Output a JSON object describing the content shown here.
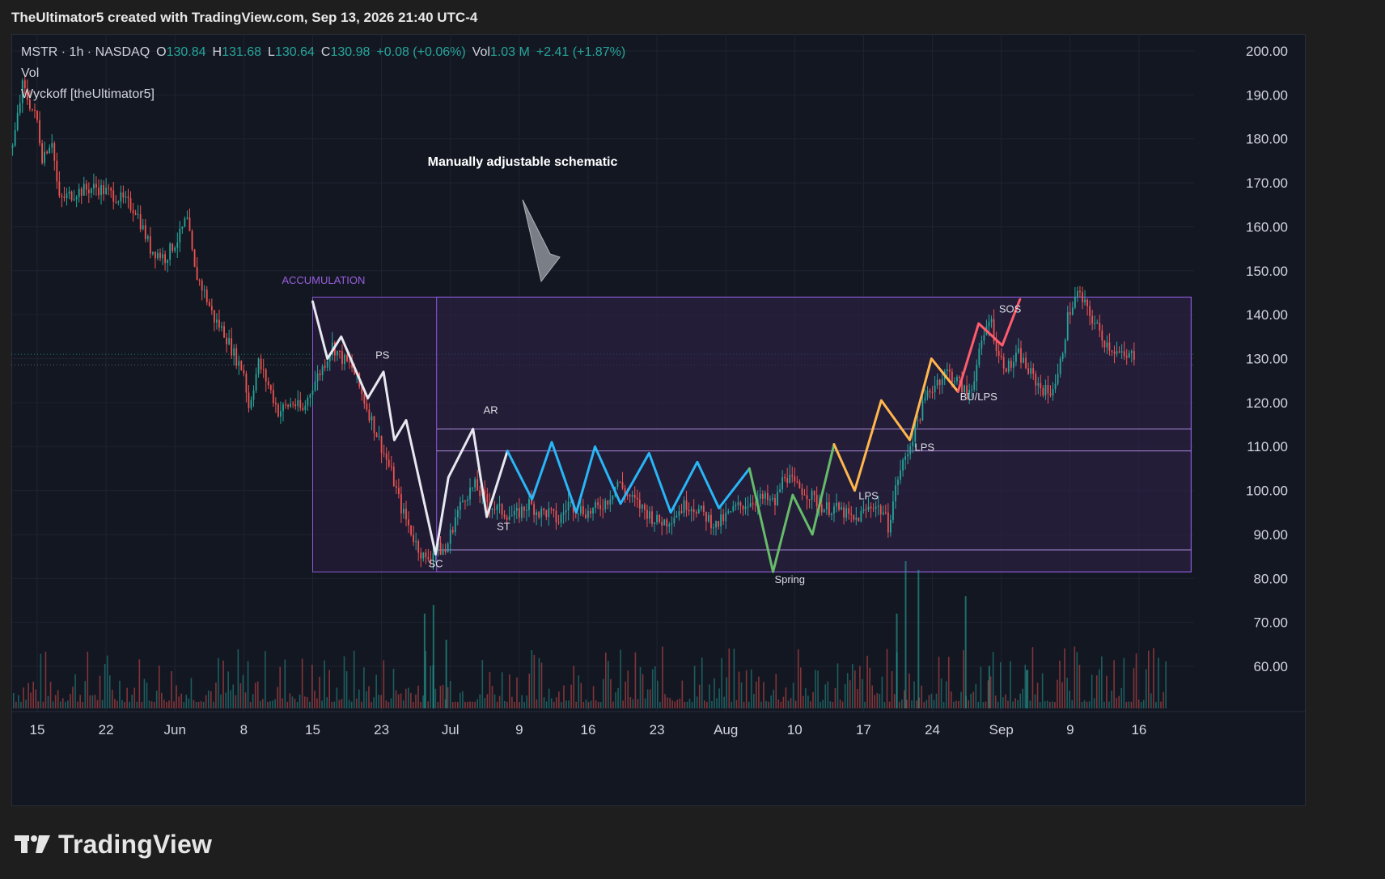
{
  "header": {
    "credit": "TheUltimator5 created with TradingView.com, Sep 13, 2026 21:40 UTC-4"
  },
  "legend": {
    "symbol": "MSTR · 1h · NASDAQ",
    "o_label": "O",
    "o_value": "130.84",
    "h_label": "H",
    "h_value": "131.68",
    "l_label": "L",
    "l_value": "130.64",
    "c_label": "C",
    "c_value": "130.98",
    "change": "+0.08 (+0.06%)",
    "vol_label": "Vol",
    "vol_value": "1.03 M",
    "vol_change": "+2.41 (+1.87%)",
    "line2": "Vol",
    "line3": "Wyckoff [theUltimator5]"
  },
  "footer": {
    "brand": "TradingView"
  },
  "colors": {
    "up": "#26a69a",
    "down": "#ef5350",
    "background": "#131722",
    "box_fill": "#2a1e3e",
    "box_stroke": "#8c5ad8",
    "white_leg": "#e8e8f0",
    "cyan_leg": "#29b6f6",
    "green_leg": "#66bb6a",
    "orange_leg": "#ffb74d",
    "red_leg": "#ff5c6c"
  },
  "chart_data": {
    "type": "candlestick",
    "title": "",
    "ylim": [
      50,
      205
    ],
    "y_ticks": [
      200,
      190,
      180,
      170,
      160,
      150,
      140,
      130,
      120,
      110,
      100,
      90,
      80,
      70,
      60
    ],
    "y_tick_labels": [
      "200.00",
      "190.00",
      "180.00",
      "170.00",
      "160.00",
      "150.00",
      "140.00",
      "130.00",
      "120.00",
      "110.00",
      "100.00",
      "90.00",
      "80.00",
      "70.00",
      "60.00"
    ],
    "x_ticks": [
      {
        "day": 0,
        "label": "15"
      },
      {
        "day": 7,
        "label": "22"
      },
      {
        "day": 14,
        "label": "Jun"
      },
      {
        "day": 21,
        "label": "8"
      },
      {
        "day": 28,
        "label": "15"
      },
      {
        "day": 35,
        "label": "23"
      },
      {
        "day": 42,
        "label": "Jul"
      },
      {
        "day": 49,
        "label": "9"
      },
      {
        "day": 56,
        "label": "16"
      },
      {
        "day": 63,
        "label": "23"
      },
      {
        "day": 70,
        "label": "Aug"
      },
      {
        "day": 77,
        "label": "10"
      },
      {
        "day": 84,
        "label": "17"
      },
      {
        "day": 91,
        "label": "24"
      },
      {
        "day": 98,
        "label": "Sep"
      },
      {
        "day": 105,
        "label": "9"
      },
      {
        "day": 112,
        "label": "16"
      }
    ],
    "price_path": [
      [
        -2.5,
        178
      ],
      [
        -1.5,
        192
      ],
      [
        0,
        184
      ],
      [
        0.5,
        176
      ],
      [
        1.5,
        180
      ],
      [
        2.2,
        166
      ],
      [
        4,
        168
      ],
      [
        6,
        169
      ],
      [
        8,
        167
      ],
      [
        10,
        164
      ],
      [
        11.5,
        155
      ],
      [
        13,
        153
      ],
      [
        14.5,
        158
      ],
      [
        15.2,
        162
      ],
      [
        16,
        150
      ],
      [
        17,
        145
      ],
      [
        18,
        139
      ],
      [
        19,
        136
      ],
      [
        20,
        131
      ],
      [
        21,
        127
      ],
      [
        21.5,
        119
      ],
      [
        22.5,
        129
      ],
      [
        23.5,
        124
      ],
      [
        24.5,
        118
      ],
      [
        26,
        120
      ],
      [
        27,
        118
      ],
      [
        28,
        124
      ],
      [
        29,
        128
      ],
      [
        30,
        133
      ],
      [
        31,
        130
      ],
      [
        32,
        128
      ],
      [
        33,
        122
      ],
      [
        34,
        116
      ],
      [
        35,
        110
      ],
      [
        36,
        104
      ],
      [
        37,
        96
      ],
      [
        38.5,
        88
      ],
      [
        39.5,
        84
      ],
      [
        40.5,
        87
      ],
      [
        41.5,
        86
      ],
      [
        42.5,
        94
      ],
      [
        43.5,
        99
      ],
      [
        44.5,
        101
      ],
      [
        45.5,
        98
      ],
      [
        46.5,
        96
      ],
      [
        47.5,
        95
      ],
      [
        48.5,
        94
      ],
      [
        50,
        97
      ],
      [
        51,
        95
      ],
      [
        52,
        95
      ],
      [
        53,
        93
      ],
      [
        54,
        97
      ],
      [
        55,
        96
      ],
      [
        56,
        95
      ],
      [
        57,
        96
      ],
      [
        58,
        98
      ],
      [
        59,
        102
      ],
      [
        60,
        99
      ],
      [
        61,
        97
      ],
      [
        62,
        95
      ],
      [
        63,
        93
      ],
      [
        64,
        93
      ],
      [
        65,
        95
      ],
      [
        66,
        97
      ],
      [
        67,
        96
      ],
      [
        68,
        94
      ],
      [
        69,
        92
      ],
      [
        70,
        94
      ],
      [
        71,
        96
      ],
      [
        72,
        97
      ],
      [
        73,
        98
      ],
      [
        74,
        98
      ],
      [
        75,
        97
      ],
      [
        76,
        104
      ],
      [
        77,
        101
      ],
      [
        78,
        100
      ],
      [
        79,
        98
      ],
      [
        80,
        96
      ],
      [
        81,
        96
      ],
      [
        82,
        95
      ],
      [
        83,
        93
      ],
      [
        84,
        95
      ],
      [
        85,
        97
      ],
      [
        86,
        95
      ],
      [
        86.5,
        92
      ],
      [
        87.5,
        103
      ],
      [
        88.5,
        109
      ],
      [
        89.5,
        116
      ],
      [
        90.5,
        122
      ],
      [
        91.5,
        125
      ],
      [
        92.5,
        127
      ],
      [
        93.5,
        125
      ],
      [
        94.5,
        122
      ],
      [
        95,
        124
      ],
      [
        96,
        133
      ],
      [
        96.8,
        140
      ],
      [
        97.8,
        130
      ],
      [
        98.8,
        128
      ],
      [
        99.8,
        131
      ],
      [
        100.8,
        127
      ],
      [
        101.8,
        124
      ],
      [
        102.8,
        122
      ],
      [
        103.8,
        126
      ],
      [
        104.8,
        140
      ],
      [
        105.8,
        145
      ],
      [
        106.5,
        142
      ],
      [
        107.5,
        138
      ],
      [
        108.5,
        134
      ],
      [
        109.5,
        132
      ],
      [
        110.5,
        130
      ],
      [
        111.5,
        131
      ]
    ],
    "box": {
      "x_start": 28.0,
      "x_end": 117.3,
      "y_top": 144,
      "y_bottom": 81.5,
      "inner_x_start": 40.6
    },
    "levels": [
      114,
      109,
      86.5
    ],
    "swing_white": [
      [
        28.0,
        143
      ],
      [
        29.5,
        130
      ],
      [
        30.9,
        135
      ],
      [
        33.6,
        121
      ],
      [
        35.2,
        127
      ],
      [
        36.3,
        111.5
      ],
      [
        37.5,
        116
      ],
      [
        40.5,
        85.5
      ],
      [
        41.8,
        103
      ],
      [
        44.3,
        114
      ],
      [
        45.7,
        94
      ],
      [
        47.8,
        109
      ]
    ],
    "swing_cyan": [
      [
        47.8,
        109
      ],
      [
        50.3,
        98
      ],
      [
        52.3,
        111
      ],
      [
        54.8,
        95
      ],
      [
        56.7,
        110
      ],
      [
        59.3,
        97
      ],
      [
        62.2,
        108.5
      ],
      [
        64.4,
        95
      ],
      [
        67.1,
        106.5
      ],
      [
        69.3,
        96
      ],
      [
        72.4,
        105
      ]
    ],
    "swing_green": [
      [
        72.4,
        105
      ],
      [
        74.8,
        81.5
      ],
      [
        76.8,
        99
      ],
      [
        78.8,
        90
      ],
      [
        81.0,
        110.5
      ]
    ],
    "swing_orange": [
      [
        81.0,
        110.5
      ],
      [
        83.1,
        100
      ],
      [
        85.8,
        120.5
      ],
      [
        88.7,
        111.5
      ],
      [
        90.9,
        130
      ],
      [
        93.6,
        122.5
      ]
    ],
    "swing_red": [
      [
        93.6,
        122.5
      ],
      [
        95.7,
        138
      ],
      [
        98.1,
        133
      ],
      [
        99.9,
        143.5
      ]
    ],
    "labels": [
      {
        "text": "ACCUMULATION",
        "x": 29.1,
        "y": 147,
        "color": "#9a5fe0"
      },
      {
        "text": "PS",
        "x": 35.1,
        "y": 130,
        "color": "#dcdce4"
      },
      {
        "text": "AR",
        "x": 46.1,
        "y": 117.5,
        "color": "#dcdce4"
      },
      {
        "text": "ST",
        "x": 47.4,
        "y": 91,
        "color": "#dcdce4"
      },
      {
        "text": "SC",
        "x": 40.5,
        "y": 82.5,
        "color": "#dcdce4"
      },
      {
        "text": "Spring",
        "x": 76.5,
        "y": 79,
        "color": "#dcdce4"
      },
      {
        "text": "LPS",
        "x": 84.5,
        "y": 98,
        "color": "#dcdce4"
      },
      {
        "text": "LPS",
        "x": 90.2,
        "y": 109,
        "color": "#dcdce4"
      },
      {
        "text": "BU/LPS",
        "x": 95.7,
        "y": 120.5,
        "color": "#dcdce4"
      },
      {
        "text": "SOS",
        "x": 98.9,
        "y": 140.5,
        "color": "#dcdce4"
      }
    ],
    "annotation": {
      "text": "Manually adjustable schematic"
    },
    "volume_spikes": [
      {
        "day": 40.2,
        "v": 70
      },
      {
        "day": 39.3,
        "v": 68
      },
      {
        "day": 41.5,
        "v": 62
      },
      {
        "day": 88.2,
        "v": 80
      },
      {
        "day": 89.5,
        "v": 78
      },
      {
        "day": 87.3,
        "v": 68
      },
      {
        "day": 94.3,
        "v": 72
      },
      {
        "day": 96.7,
        "v": 56
      },
      {
        "day": 100.5,
        "v": 55
      }
    ]
  }
}
